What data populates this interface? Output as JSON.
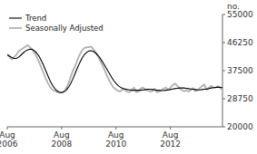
{
  "chart_data": {
    "type": "line",
    "ylabel": "no.",
    "categories": [
      "Aug\n2006",
      null,
      null,
      null,
      null,
      null,
      null,
      null,
      null,
      null,
      null,
      null,
      null,
      null,
      null,
      null,
      null,
      null,
      null,
      null,
      null,
      null,
      null,
      null,
      "Aug\n2008",
      null,
      null,
      null,
      null,
      null,
      null,
      null,
      null,
      null,
      null,
      null,
      null,
      null,
      null,
      null,
      null,
      null,
      null,
      null,
      null,
      null,
      null,
      null,
      "Aug\n2010",
      null,
      null,
      null,
      null,
      null,
      null,
      null,
      null,
      null,
      null,
      null,
      null,
      null,
      null,
      null,
      null,
      null,
      null,
      null,
      null,
      null,
      null,
      null,
      "Aug\n2012",
      null,
      null,
      null,
      null,
      null,
      null,
      null,
      null,
      null,
      null,
      null,
      null,
      null,
      null,
      null,
      null,
      null,
      null,
      null,
      null,
      null,
      null,
      null
    ],
    "series": [
      {
        "name": "Seasonally Adjusted",
        "color": "#b0b0b0",
        "values": [
          42500,
          41800,
          41000,
          41800,
          42500,
          43500,
          44000,
          44500,
          45000,
          45500,
          44800,
          44200,
          43000,
          41800,
          40200,
          38500,
          36800,
          35000,
          33500,
          32300,
          31500,
          31200,
          30800,
          30700,
          30600,
          31000,
          32000,
          33500,
          35500,
          37500,
          39000,
          41000,
          42500,
          43800,
          44500,
          44800,
          44800,
          45000,
          44200,
          43200,
          42000,
          40600,
          39200,
          37600,
          36000,
          34500,
          33200,
          32200,
          31600,
          31200,
          31000,
          31800,
          31400,
          30900,
          30800,
          31600,
          32200,
          30800,
          31100,
          32000,
          32200,
          31500,
          31400,
          31000,
          31100,
          31900,
          30800,
          31000,
          31400,
          31900,
          32200,
          31500,
          32200,
          33000,
          33500,
          32800,
          32000,
          31500,
          31100,
          31400,
          31000,
          31400,
          32100,
          31100,
          31400,
          32100,
          32700,
          33200,
          31500,
          32200,
          32800,
          32200,
          32200,
          32700,
          32100,
          31500
        ]
      },
      {
        "name": "Trend",
        "color": "#000000",
        "values": [
          42500,
          42000,
          41600,
          41300,
          41300,
          41700,
          42300,
          43000,
          43600,
          44000,
          44200,
          44100,
          43700,
          43000,
          42000,
          40700,
          39200,
          37500,
          35800,
          34200,
          32900,
          31900,
          31200,
          30800,
          30700,
          30900,
          31400,
          32300,
          33500,
          35000,
          36700,
          38400,
          40000,
          41400,
          42500,
          43200,
          43600,
          43700,
          43500,
          43000,
          42300,
          41400,
          40300,
          39100,
          37900,
          36700,
          35500,
          34400,
          33500,
          32800,
          32300,
          32000,
          31800,
          31600,
          31500,
          31400,
          31400,
          31400,
          31400,
          31400,
          31500,
          31600,
          31700,
          31700,
          31600,
          31500,
          31400,
          31400,
          31300,
          31300,
          31400,
          31500,
          31600,
          31800,
          31900,
          32000,
          32100,
          32100,
          32100,
          32000,
          31900,
          31800,
          31700,
          31600,
          31500,
          31500,
          31600,
          31700,
          31800,
          31900,
          32100,
          32200,
          32300,
          32300,
          32300,
          32200
        ]
      }
    ],
    "ylim": [
      20000,
      55000
    ],
    "yticks": [
      20000,
      28750,
      37500,
      46250,
      55000
    ],
    "grid": false,
    "legend": "upper left"
  }
}
